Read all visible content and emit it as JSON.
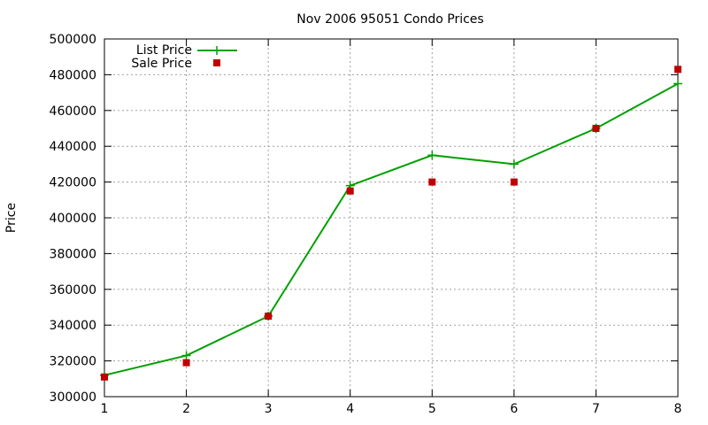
{
  "chart_data": {
    "type": "line",
    "title": "Nov 2006 95051 Condo Prices",
    "xlabel": "",
    "ylabel": "Price",
    "x": [
      1,
      2,
      3,
      4,
      5,
      6,
      7,
      8
    ],
    "xlim": [
      1,
      8
    ],
    "ylim": [
      300000,
      500000
    ],
    "yticks": [
      "300000",
      "320000",
      "340000",
      "360000",
      "380000",
      "400000",
      "420000",
      "440000",
      "460000",
      "480000",
      "500000"
    ],
    "xticks": [
      "1",
      "2",
      "3",
      "4",
      "5",
      "6",
      "7",
      "8"
    ],
    "grid": true,
    "legend_position": "top-left",
    "series": [
      {
        "name": "List Price",
        "style": "line-with-plus-markers",
        "color": "#00a000",
        "values": [
          312000,
          323000,
          345000,
          418000,
          435000,
          430000,
          450000,
          475000
        ]
      },
      {
        "name": "Sale Price",
        "style": "square-markers",
        "color": "#c00000",
        "values": [
          311000,
          319000,
          345000,
          415000,
          420000,
          420000,
          450000,
          483000
        ]
      }
    ]
  }
}
